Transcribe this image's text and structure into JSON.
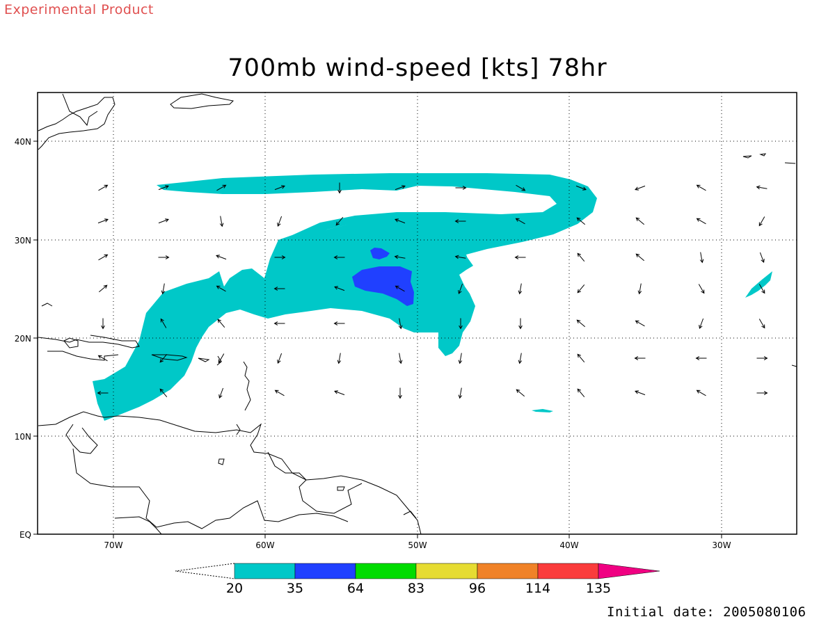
{
  "header": {
    "experimental": "Experimental Product",
    "title": "700mb wind-speed [kts] 78hr"
  },
  "footer": {
    "initial_date": "Initial date: 2005080106"
  },
  "map": {
    "lon_ticks": [
      "70W",
      "60W",
      "50W",
      "40W",
      "30W"
    ],
    "lat_ticks": [
      "40N",
      "30N",
      "20N",
      "10N",
      "EQ"
    ],
    "lon_range": [
      -75,
      -25
    ],
    "lat_range": [
      0,
      45
    ],
    "grid": "dotted"
  },
  "colorbar": {
    "labels": [
      "20",
      "35",
      "64",
      "83",
      "96",
      "114",
      "135"
    ],
    "colors": [
      "#00c8c8",
      "#2040ff",
      "#00dc00",
      "#e6dc32",
      "#f08228",
      "#fa3c3c",
      "#f00082"
    ]
  },
  "wind_vectors": "arrows on regular grid (~4° spacing)"
}
